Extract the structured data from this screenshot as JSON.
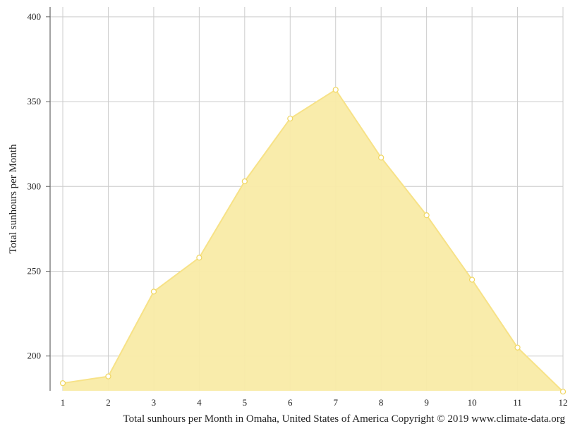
{
  "chart_data": {
    "type": "area",
    "title": "",
    "caption": "Total sunhours per Month in Omaha, United States of America Copyright © 2019 www.climate-data.org",
    "xlabel": "",
    "ylabel": "Total sunhours per Month",
    "x": [
      1,
      2,
      3,
      4,
      5,
      6,
      7,
      8,
      9,
      10,
      11,
      12
    ],
    "x_tick_labels": [
      "1",
      "2",
      "3",
      "4",
      "5",
      "6",
      "7",
      "8",
      "9",
      "10",
      "11",
      "12"
    ],
    "y_ticks": [
      200,
      250,
      300,
      350,
      400
    ],
    "y_tick_labels": [
      "200",
      "250",
      "300",
      "350",
      "400"
    ],
    "ylim": [
      179.5,
      404.5
    ],
    "xlim": [
      1,
      12
    ],
    "grid": true,
    "legend": "none",
    "series": [
      {
        "values": [
          184,
          188,
          238,
          258,
          303,
          340,
          357,
          317,
          283,
          245,
          205,
          179
        ],
        "fill_color": "#f9eba6",
        "line_color": "#f7e287",
        "marker_fill": "#ffffff",
        "marker_stroke": "#f0d660"
      }
    ],
    "colors": {
      "grid": "#cccccc",
      "axis": "#666666",
      "text": "#222222"
    }
  }
}
